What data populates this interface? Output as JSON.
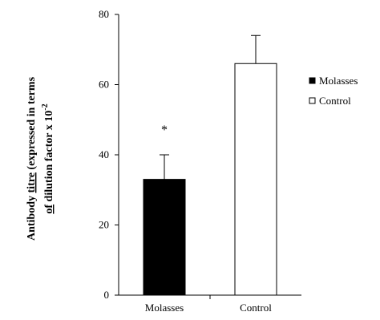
{
  "chart_data": {
    "type": "bar",
    "categories": [
      "Molasses",
      "Control"
    ],
    "series": [
      {
        "name": "Molasses",
        "values": [
          33,
          null
        ],
        "errors": [
          7,
          null
        ],
        "color": "#000000",
        "annotation": "*"
      },
      {
        "name": "Control",
        "values": [
          null,
          66
        ],
        "errors": [
          null,
          8
        ],
        "color": "#ffffff"
      }
    ],
    "ylim": [
      0,
      80
    ],
    "yticks": [
      0,
      20,
      40,
      60,
      80
    ],
    "ylabel": {
      "line1_a": "Antibody ",
      "line1_b": "titre",
      "line1_c": " (expressed in terms",
      "line2_a": "of",
      "line2_b": " dilution factor x 10",
      "line2_sup": "-2"
    },
    "legend": {
      "position": "right",
      "items": [
        "Molasses",
        "Control"
      ]
    },
    "grid": false
  }
}
